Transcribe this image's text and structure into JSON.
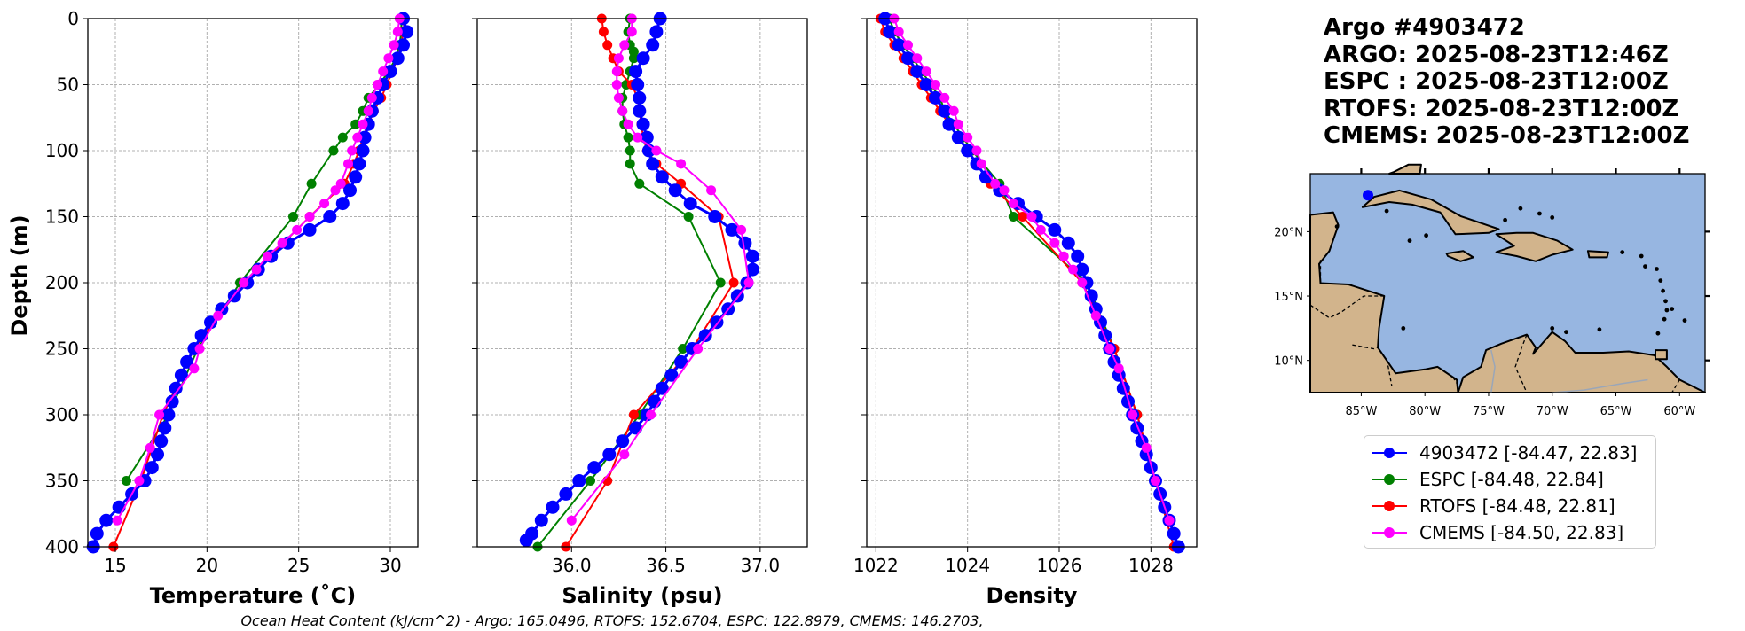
{
  "info": {
    "title": "Argo #4903472",
    "argo_time": "ARGO: 2025-08-23T12:46Z",
    "espc_time": "ESPC : 2025-08-23T12:00Z",
    "rtofs_time": "RTOFS: 2025-08-23T12:00Z",
    "cmems_time": "CMEMS: 2025-08-23T12:00Z"
  },
  "footer": "Ocean Heat Content (kJ/cm^2) - Argo: 165.0496,  RTOFS: 152.6704,  ESPC: 122.8979,  CMEMS: 146.2703,",
  "colors": {
    "argo": "#0000ff",
    "espc": "#008000",
    "rtofs": "#ff0000",
    "cmems": "#ff00ff",
    "ocean": "#97b6e1",
    "land": "#d2b48c",
    "grid": "#b0b0b0"
  },
  "legend": [
    {
      "label": "4903472 [-84.47, 22.83]",
      "color": "#0000ff"
    },
    {
      "label": "ESPC [-84.48, 22.84]",
      "color": "#008000"
    },
    {
      "label": "RTOFS [-84.48, 22.81]",
      "color": "#ff0000"
    },
    {
      "label": "CMEMS [-84.50, 22.83]",
      "color": "#ff00ff"
    }
  ],
  "map": {
    "lon_range": [
      -89,
      -58
    ],
    "lat_range": [
      7.5,
      24.5
    ],
    "lon_ticks": [
      "85°W",
      "80°W",
      "75°W",
      "70°W",
      "65°W",
      "60°W"
    ],
    "lon_tick_values": [
      -85,
      -80,
      -75,
      -70,
      -65,
      -60
    ],
    "lat_ticks": [
      "20°N",
      "15°N",
      "10°N"
    ],
    "lat_tick_values": [
      20,
      15,
      10
    ],
    "float_position": [
      -84.47,
      22.83
    ]
  },
  "chart_data": [
    {
      "type": "line",
      "title": "",
      "xlabel": "Temperature (˚C)",
      "ylabel": "Depth (m)",
      "xlim": [
        13.5,
        31.5
      ],
      "ylim": [
        400,
        0
      ],
      "x_ticks": [
        15,
        20,
        25,
        30
      ],
      "y_ticks": [
        0,
        50,
        100,
        150,
        200,
        250,
        300,
        350,
        400
      ],
      "grid": true,
      "series": [
        {
          "name": "4903472",
          "style": "argo",
          "depth": [
            0,
            10,
            20,
            30,
            40,
            50,
            60,
            70,
            80,
            90,
            100,
            110,
            120,
            130,
            140,
            150,
            160,
            170,
            180,
            190,
            200,
            210,
            220,
            230,
            240,
            250,
            260,
            270,
            280,
            290,
            300,
            310,
            320,
            330,
            340,
            350,
            360,
            370,
            380,
            390,
            400
          ],
          "values": [
            30.7,
            30.9,
            30.7,
            30.4,
            30.0,
            29.6,
            29.3,
            29.0,
            28.8,
            28.6,
            28.5,
            28.3,
            28.1,
            27.8,
            27.4,
            26.7,
            25.6,
            24.4,
            23.5,
            22.8,
            22.2,
            21.5,
            20.8,
            20.2,
            19.7,
            19.3,
            18.9,
            18.6,
            18.3,
            18.1,
            17.9,
            17.7,
            17.5,
            17.3,
            17.0,
            16.6,
            15.9,
            15.2,
            14.5,
            14.0,
            13.8
          ]
        },
        {
          "name": "ESPC",
          "style": "espc",
          "depth": [
            0,
            10,
            20,
            30,
            40,
            50,
            60,
            70,
            80,
            90,
            100,
            125,
            150,
            200,
            250,
            300,
            350
          ],
          "values": [
            30.6,
            30.6,
            30.5,
            30.3,
            29.9,
            29.4,
            28.8,
            28.5,
            28.1,
            27.4,
            26.9,
            25.7,
            24.7,
            21.8,
            19.5,
            17.9,
            15.6
          ]
        },
        {
          "name": "RTOFS",
          "style": "rtofs",
          "depth": [
            0,
            10,
            20,
            30,
            40,
            50,
            60,
            70,
            80,
            90,
            100,
            110,
            125,
            150,
            200,
            250,
            300,
            350,
            400
          ],
          "values": [
            30.8,
            30.7,
            30.6,
            30.4,
            30.1,
            29.8,
            29.5,
            29.1,
            28.8,
            28.5,
            28.3,
            28.0,
            27.5,
            25.6,
            22.0,
            19.3,
            17.6,
            16.4,
            14.9
          ]
        },
        {
          "name": "CMEMS",
          "style": "cmems",
          "depth": [
            0,
            10,
            20,
            30,
            40,
            50,
            60,
            70,
            80,
            90,
            100,
            110,
            125,
            130,
            140,
            150,
            160,
            170,
            180,
            190,
            200,
            225,
            250,
            265,
            300,
            325,
            350,
            380
          ],
          "values": [
            30.5,
            30.4,
            30.2,
            29.9,
            29.6,
            29.3,
            29.0,
            28.8,
            28.5,
            28.2,
            27.9,
            27.7,
            27.3,
            27.0,
            26.4,
            25.6,
            24.9,
            24.1,
            23.3,
            22.7,
            22.0,
            20.6,
            19.6,
            19.3,
            17.4,
            16.9,
            16.3,
            15.1
          ]
        }
      ]
    },
    {
      "type": "line",
      "title": "",
      "xlabel": "Salinity (psu)",
      "ylabel": "",
      "xlim": [
        35.5,
        37.25
      ],
      "ylim": [
        400,
        0
      ],
      "x_ticks": [
        36.0,
        36.5,
        37.0
      ],
      "x_tick_labels": [
        "36.0",
        "36.5",
        "37.0"
      ],
      "grid": true,
      "series": [
        {
          "name": "4903472",
          "style": "argo",
          "depth": [
            0,
            10,
            20,
            30,
            40,
            50,
            60,
            70,
            80,
            90,
            100,
            110,
            120,
            130,
            140,
            150,
            160,
            170,
            180,
            190,
            200,
            210,
            220,
            230,
            240,
            250,
            260,
            270,
            280,
            290,
            300,
            310,
            320,
            330,
            340,
            350,
            360,
            370,
            380,
            390,
            395
          ],
          "values": [
            36.47,
            36.45,
            36.43,
            36.38,
            36.34,
            36.35,
            36.36,
            36.36,
            36.38,
            36.4,
            36.41,
            36.43,
            36.48,
            36.55,
            36.63,
            36.76,
            36.85,
            36.92,
            36.96,
            36.96,
            36.93,
            36.88,
            36.83,
            36.77,
            36.71,
            36.64,
            36.58,
            36.53,
            36.48,
            36.44,
            36.4,
            36.34,
            36.27,
            36.2,
            36.12,
            36.04,
            35.97,
            35.9,
            35.84,
            35.79,
            35.76
          ]
        },
        {
          "name": "ESPC",
          "style": "espc",
          "depth": [
            0,
            10,
            20,
            25,
            30,
            40,
            50,
            60,
            70,
            80,
            90,
            100,
            110,
            125,
            150,
            200,
            250,
            300,
            350,
            400
          ],
          "values": [
            36.31,
            36.3,
            36.31,
            36.33,
            36.33,
            36.31,
            36.29,
            36.27,
            36.27,
            36.28,
            36.3,
            36.31,
            36.31,
            36.36,
            36.62,
            36.79,
            36.59,
            36.36,
            36.1,
            35.82
          ]
        },
        {
          "name": "RTOFS",
          "style": "rtofs",
          "depth": [
            0,
            10,
            20,
            30,
            40,
            50,
            60,
            70,
            80,
            90,
            100,
            110,
            125,
            150,
            200,
            250,
            300,
            350,
            400
          ],
          "values": [
            36.16,
            36.17,
            36.19,
            36.22,
            36.25,
            36.32,
            36.35,
            36.36,
            36.37,
            36.38,
            36.4,
            36.45,
            36.58,
            36.78,
            36.86,
            36.64,
            36.33,
            36.19,
            35.97
          ]
        },
        {
          "name": "CMEMS",
          "style": "cmems",
          "depth": [
            0,
            10,
            20,
            30,
            40,
            50,
            60,
            70,
            80,
            90,
            100,
            110,
            130,
            160,
            200,
            250,
            300,
            330,
            380
          ],
          "values": [
            36.32,
            36.32,
            36.28,
            36.25,
            36.24,
            36.24,
            36.25,
            36.27,
            36.3,
            36.35,
            36.45,
            36.58,
            36.74,
            36.9,
            36.94,
            36.67,
            36.42,
            36.28,
            36.0
          ]
        }
      ]
    },
    {
      "type": "line",
      "title": "",
      "xlabel": "Density",
      "ylabel": "",
      "xlim": [
        1021.8,
        1029.0
      ],
      "ylim": [
        400,
        0
      ],
      "x_ticks": [
        1022,
        1024,
        1026,
        1028
      ],
      "grid": true,
      "series": [
        {
          "name": "4903472",
          "style": "argo",
          "depth": [
            0,
            10,
            20,
            30,
            40,
            50,
            60,
            70,
            80,
            90,
            100,
            110,
            120,
            130,
            140,
            150,
            160,
            170,
            180,
            190,
            200,
            210,
            220,
            230,
            240,
            250,
            260,
            270,
            280,
            290,
            300,
            310,
            320,
            330,
            340,
            350,
            360,
            370,
            380,
            390,
            400
          ],
          "values": [
            1022.2,
            1022.3,
            1022.5,
            1022.7,
            1022.9,
            1023.1,
            1023.3,
            1023.5,
            1023.6,
            1023.8,
            1024.0,
            1024.2,
            1024.4,
            1024.7,
            1025.1,
            1025.5,
            1025.9,
            1026.2,
            1026.4,
            1026.5,
            1026.6,
            1026.7,
            1026.8,
            1026.9,
            1027.0,
            1027.1,
            1027.2,
            1027.3,
            1027.4,
            1027.5,
            1027.6,
            1027.7,
            1027.8,
            1027.9,
            1028.0,
            1028.1,
            1028.2,
            1028.3,
            1028.4,
            1028.5,
            1028.6
          ]
        },
        {
          "name": "ESPC",
          "style": "espc",
          "depth": [
            0,
            10,
            20,
            30,
            40,
            50,
            60,
            70,
            80,
            90,
            100,
            125,
            150,
            200,
            250,
            300,
            350
          ],
          "values": [
            1022.3,
            1022.4,
            1022.6,
            1022.8,
            1023.0,
            1023.2,
            1023.4,
            1023.5,
            1023.7,
            1023.9,
            1024.1,
            1024.7,
            1025.0,
            1026.6,
            1027.2,
            1027.7,
            1028.1
          ]
        },
        {
          "name": "RTOFS",
          "style": "rtofs",
          "depth": [
            0,
            10,
            20,
            30,
            40,
            50,
            60,
            70,
            80,
            90,
            100,
            110,
            125,
            150,
            200,
            250,
            300,
            350,
            400
          ],
          "values": [
            1022.1,
            1022.2,
            1022.4,
            1022.6,
            1022.8,
            1023.0,
            1023.2,
            1023.4,
            1023.6,
            1023.8,
            1024.0,
            1024.2,
            1024.5,
            1025.2,
            1026.5,
            1027.2,
            1027.7,
            1028.1,
            1028.5
          ]
        },
        {
          "name": "CMEMS",
          "style": "cmems",
          "depth": [
            0,
            10,
            20,
            30,
            40,
            50,
            60,
            70,
            80,
            90,
            100,
            110,
            125,
            130,
            140,
            150,
            160,
            170,
            180,
            190,
            200,
            225,
            250,
            265,
            300,
            325,
            350,
            380
          ],
          "values": [
            1022.4,
            1022.5,
            1022.7,
            1022.9,
            1023.1,
            1023.3,
            1023.5,
            1023.7,
            1023.8,
            1024.0,
            1024.2,
            1024.3,
            1024.6,
            1024.8,
            1025.0,
            1025.4,
            1025.6,
            1025.9,
            1026.1,
            1026.3,
            1026.5,
            1026.8,
            1027.1,
            1027.3,
            1027.6,
            1027.9,
            1028.1,
            1028.4
          ]
        }
      ]
    }
  ]
}
